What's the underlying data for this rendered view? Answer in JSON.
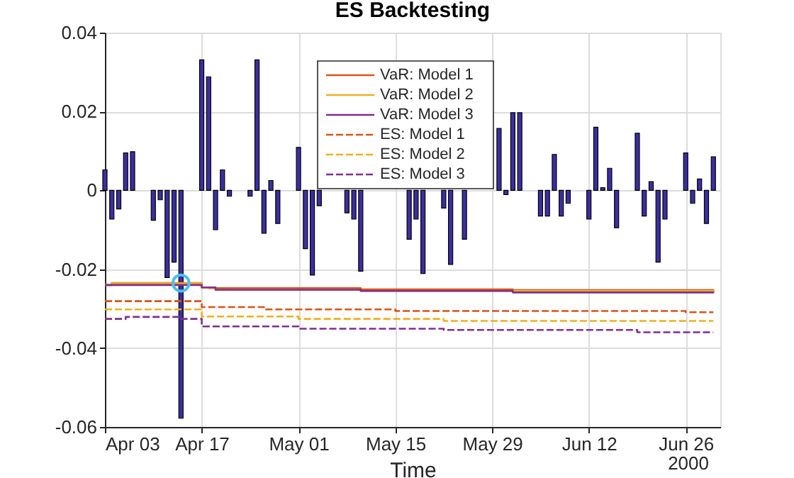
{
  "chart_data": {
    "type": "bar",
    "title": "ES Backtesting",
    "xlabel": "Time",
    "annotations": [
      "2000"
    ],
    "x": [
      "2000-04-03",
      "2000-04-04",
      "2000-04-05",
      "2000-04-06",
      "2000-04-07",
      "2000-04-10",
      "2000-04-11",
      "2000-04-12",
      "2000-04-13",
      "2000-04-14",
      "2000-04-17",
      "2000-04-18",
      "2000-04-19",
      "2000-04-20",
      "2000-04-21",
      "2000-04-24",
      "2000-04-25",
      "2000-04-26",
      "2000-04-27",
      "2000-04-28",
      "2000-05-01",
      "2000-05-02",
      "2000-05-03",
      "2000-05-04",
      "2000-05-05",
      "2000-05-08",
      "2000-05-09",
      "2000-05-10",
      "2000-05-11",
      "2000-05-12",
      "2000-05-15",
      "2000-05-16",
      "2000-05-17",
      "2000-05-18",
      "2000-05-19",
      "2000-05-22",
      "2000-05-23",
      "2000-05-24",
      "2000-05-25",
      "2000-05-26",
      "2000-05-30",
      "2000-05-31",
      "2000-06-01",
      "2000-06-02",
      "2000-06-05",
      "2000-06-06",
      "2000-06-07",
      "2000-06-08",
      "2000-06-09",
      "2000-06-12",
      "2000-06-13",
      "2000-06-14",
      "2000-06-15",
      "2000-06-16",
      "2000-06-19",
      "2000-06-20",
      "2000-06-21",
      "2000-06-22",
      "2000-06-23",
      "2000-06-26",
      "2000-06-27",
      "2000-06-28",
      "2000-06-29",
      "2000-06-30"
    ],
    "series": [
      {
        "color": "#3c2ea3",
        "values": [
          0.0052,
          -0.0073,
          -0.0047,
          0.0095,
          0.0098,
          -0.0076,
          -0.0024,
          -0.0221,
          -0.0182,
          -0.0578,
          0.0331,
          0.0288,
          -0.01,
          0.0052,
          -0.0015,
          -0.0015,
          0.0331,
          -0.0109,
          0.0025,
          -0.0084,
          0.0109,
          -0.0148,
          -0.0215,
          -0.0039,
          null,
          -0.0057,
          -0.0073,
          -0.0205,
          null,
          null,
          null,
          null,
          -0.0124,
          -0.0073,
          -0.0211,
          -0.0045,
          -0.0188,
          null,
          -0.0124,
          null,
          0.0157,
          -0.0011,
          0.0197,
          0.0197,
          -0.0065,
          -0.0065,
          0.0091,
          -0.0065,
          -0.0033,
          -0.0073,
          0.016,
          0.0007,
          0.0056,
          -0.0095,
          0.0145,
          -0.0065,
          0.0022,
          -0.0182,
          -0.0073,
          0.0095,
          -0.0033,
          0.0029,
          -0.0084,
          0.0085
        ]
      },
      {
        "type": "step",
        "name": "VaR: Model 1",
        "color": "#d95319",
        "line_style": "solid",
        "x": [
          "2000-04-03",
          "2000-04-04",
          "2000-04-17",
          "2000-04-18",
          "2000-05-10",
          "2000-06-01",
          "2000-06-30"
        ],
        "values": [
          -0.024,
          -0.0235,
          -0.0246,
          -0.0248,
          -0.0251,
          -0.0253,
          -0.0258
        ]
      },
      {
        "type": "step",
        "name": "VaR: Model 2",
        "color": "#edb120",
        "line_style": "solid",
        "x": [
          "2000-04-03",
          "2000-04-04",
          "2000-04-17",
          "2000-04-19",
          "2000-05-10",
          "2000-06-30"
        ],
        "values": [
          -0.024,
          -0.0236,
          -0.0247,
          -0.0253,
          -0.0255,
          -0.0258
        ]
      },
      {
        "type": "step",
        "name": "VaR: Model 3",
        "color": "#7e2f8e",
        "line_style": "solid",
        "x": [
          "2000-04-03",
          "2000-04-17",
          "2000-04-19",
          "2000-05-10",
          "2000-06-01",
          "2000-06-30"
        ],
        "values": [
          -0.024,
          -0.0246,
          -0.0252,
          -0.0255,
          -0.0259,
          -0.0261
        ]
      },
      {
        "type": "step",
        "name": "ES: Model 1",
        "color": "#d95319",
        "line_style": "dashed",
        "x": [
          "2000-04-03",
          "2000-04-17",
          "2000-04-26",
          "2000-05-15",
          "2000-06-26",
          "2000-06-30"
        ],
        "values": [
          -0.0281,
          -0.0296,
          -0.0302,
          -0.0306,
          -0.0309,
          -0.0309
        ]
      },
      {
        "type": "step",
        "name": "ES: Model 2",
        "color": "#edb120",
        "line_style": "dashed",
        "x": [
          "2000-04-03",
          "2000-04-17",
          "2000-05-01",
          "2000-05-22",
          "2000-06-30"
        ],
        "values": [
          -0.0302,
          -0.032,
          -0.0326,
          -0.0331,
          -0.0331
        ]
      },
      {
        "type": "step",
        "name": "ES: Model 3",
        "color": "#7e2f8e",
        "line_style": "dashed",
        "x": [
          "2000-04-03",
          "2000-04-06",
          "2000-04-14",
          "2000-04-17",
          "2000-05-01",
          "2000-05-22",
          "2000-06-19",
          "2000-06-30"
        ],
        "values": [
          -0.0326,
          -0.0321,
          -0.0326,
          -0.0345,
          -0.0351,
          -0.0354,
          -0.036,
          -0.036
        ]
      },
      {
        "type": "scatter",
        "color": "#4dbeee",
        "marker": "circle",
        "x": [
          "2000-04-14"
        ],
        "values": [
          -0.0235
        ]
      }
    ],
    "xlim": [
      "2000-04-03",
      "2000-07-01"
    ],
    "xticks": [
      {
        "value": "2000-04-03",
        "label": "Apr 03"
      },
      {
        "value": "2000-04-17",
        "label": "Apr 17"
      },
      {
        "value": "2000-05-01",
        "label": "May 01"
      },
      {
        "value": "2000-05-15",
        "label": "May 15"
      },
      {
        "value": "2000-05-29",
        "label": "May 29"
      },
      {
        "value": "2000-06-12",
        "label": "Jun 12"
      },
      {
        "value": "2000-06-26",
        "label": "Jun 26"
      }
    ],
    "ylim": [
      -0.06,
      0.04
    ],
    "yticks": [
      -0.06,
      -0.04,
      -0.02,
      0,
      0.02,
      0.04
    ],
    "grid": true,
    "legend": "top"
  }
}
